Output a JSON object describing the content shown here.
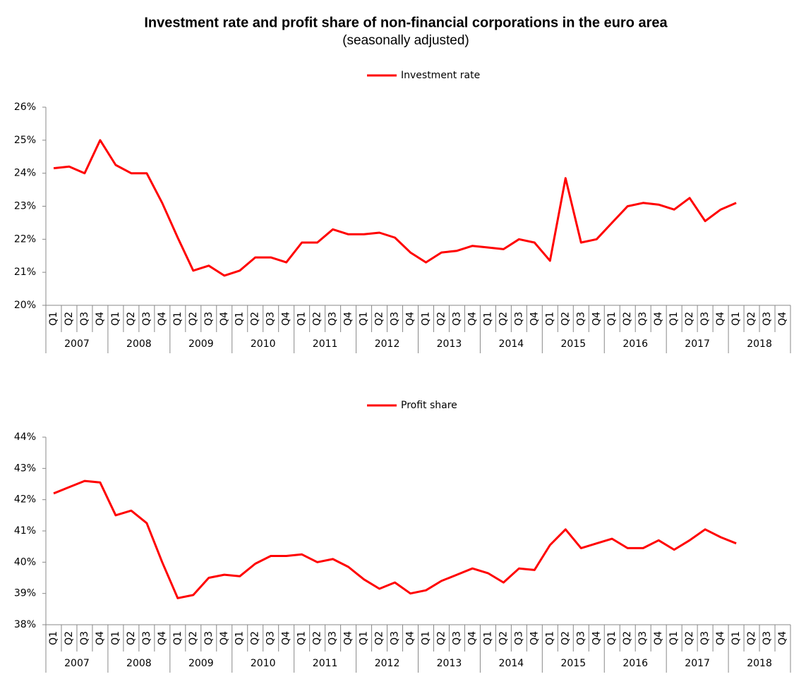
{
  "title": "Investment rate and profit share of non-financial corporations in the euro area",
  "subtitle": "(seasonally adjusted)",
  "chart_data": [
    {
      "type": "line",
      "categories": [
        "Q1",
        "Q2",
        "Q3",
        "Q4",
        "Q1",
        "Q2",
        "Q3",
        "Q4",
        "Q1",
        "Q2",
        "Q3",
        "Q4",
        "Q1",
        "Q2",
        "Q3",
        "Q4",
        "Q1",
        "Q2",
        "Q3",
        "Q4",
        "Q1",
        "Q2",
        "Q3",
        "Q4",
        "Q1",
        "Q2",
        "Q3",
        "Q4",
        "Q1",
        "Q2",
        "Q3",
        "Q4",
        "Q1",
        "Q2",
        "Q3",
        "Q4",
        "Q1",
        "Q2",
        "Q3",
        "Q4",
        "Q1",
        "Q2",
        "Q3",
        "Q4",
        "Q1",
        "Q2",
        "Q3",
        "Q4"
      ],
      "years": [
        "2007",
        "2008",
        "2009",
        "2010",
        "2011",
        "2012",
        "2013",
        "2014",
        "2015",
        "2016",
        "2017",
        "2018"
      ],
      "series": [
        {
          "name": "Investment rate",
          "color": "#ff0000",
          "values": [
            24.15,
            24.2,
            24.0,
            25.0,
            24.25,
            24.0,
            24.0,
            23.1,
            22.05,
            21.05,
            21.2,
            20.9,
            21.05,
            21.45,
            21.45,
            21.3,
            21.9,
            21.9,
            22.3,
            22.15,
            22.15,
            22.2,
            22.05,
            21.6,
            21.3,
            21.6,
            21.65,
            21.8,
            21.75,
            21.7,
            22.0,
            21.9,
            21.35,
            23.85,
            21.9,
            22.0,
            22.5,
            23.0,
            23.1,
            23.05,
            22.9,
            23.25,
            22.55,
            22.9,
            23.1,
            null,
            null,
            null
          ]
        }
      ],
      "ylim": [
        20,
        26
      ],
      "yticks": [
        {
          "value": 20,
          "label": "20%"
        },
        {
          "value": 21,
          "label": "21%"
        },
        {
          "value": 22,
          "label": "22%"
        },
        {
          "value": 23,
          "label": "23%"
        },
        {
          "value": 24,
          "label": "24%"
        },
        {
          "value": 25,
          "label": "25%"
        },
        {
          "value": 26,
          "label": "26%"
        }
      ],
      "legend": "top",
      "grid": false
    },
    {
      "type": "line",
      "categories": [
        "Q1",
        "Q2",
        "Q3",
        "Q4",
        "Q1",
        "Q2",
        "Q3",
        "Q4",
        "Q1",
        "Q2",
        "Q3",
        "Q4",
        "Q1",
        "Q2",
        "Q3",
        "Q4",
        "Q1",
        "Q2",
        "Q3",
        "Q4",
        "Q1",
        "Q2",
        "Q3",
        "Q4",
        "Q1",
        "Q2",
        "Q3",
        "Q4",
        "Q1",
        "Q2",
        "Q3",
        "Q4",
        "Q1",
        "Q2",
        "Q3",
        "Q4",
        "Q1",
        "Q2",
        "Q3",
        "Q4",
        "Q1",
        "Q2",
        "Q3",
        "Q4",
        "Q1",
        "Q2",
        "Q3",
        "Q4"
      ],
      "years": [
        "2007",
        "2008",
        "2009",
        "2010",
        "2011",
        "2012",
        "2013",
        "2014",
        "2015",
        "2016",
        "2017",
        "2018"
      ],
      "series": [
        {
          "name": "Profit share",
          "color": "#ff0000",
          "values": [
            42.2,
            42.4,
            42.6,
            42.55,
            41.5,
            41.65,
            41.25,
            40.0,
            38.85,
            38.95,
            39.5,
            39.6,
            39.55,
            39.95,
            40.2,
            40.2,
            40.25,
            40.0,
            40.1,
            39.85,
            39.45,
            39.15,
            39.35,
            39.0,
            39.1,
            39.4,
            39.6,
            39.8,
            39.65,
            39.35,
            39.8,
            39.75,
            40.55,
            41.05,
            40.45,
            40.6,
            40.75,
            40.45,
            40.45,
            40.7,
            40.4,
            40.7,
            41.05,
            40.8,
            40.6,
            null,
            null,
            null
          ]
        }
      ],
      "ylim": [
        38,
        44
      ],
      "yticks": [
        {
          "value": 38,
          "label": "38%"
        },
        {
          "value": 39,
          "label": "39%"
        },
        {
          "value": 40,
          "label": "40%"
        },
        {
          "value": 41,
          "label": "41%"
        },
        {
          "value": 42,
          "label": "42%"
        },
        {
          "value": 43,
          "label": "43%"
        },
        {
          "value": 44,
          "label": "44%"
        }
      ],
      "legend": "top",
      "grid": false
    }
  ]
}
